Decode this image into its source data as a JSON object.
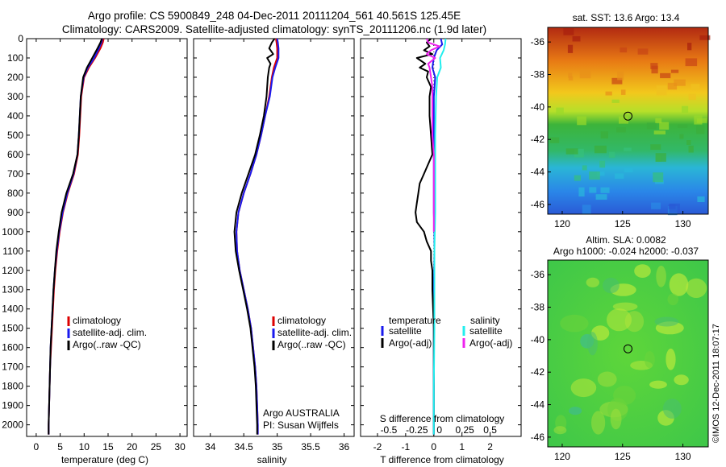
{
  "titles": {
    "line1": "Argo profile: CS 5900849_248 04-Dec-2011 20111204_561 40.561S 125.45E",
    "line2": "Climatology: CARS2009. Satellite-adjusted climatology: synTS_20111206.nc (1.9d later)"
  },
  "colors": {
    "red": "#dd0000",
    "blue": "#1a1aee",
    "black": "#000000",
    "cyan": "#22eeee",
    "magenta": "#ee22ee"
  },
  "chart_data": [
    {
      "id": "temperature",
      "type": "line",
      "xlabel": "temperature (deg C)",
      "ylabel": "",
      "xlim": [
        -2,
        31.5
      ],
      "ylim": [
        2060,
        0
      ],
      "xticks": [
        "0",
        "5",
        "10",
        "15",
        "20",
        "25",
        "30"
      ],
      "xtick_values": [
        0,
        5,
        10,
        15,
        20,
        25,
        30
      ],
      "yticks": [
        "0",
        "100",
        "200",
        "300",
        "400",
        "500",
        "600",
        "700",
        "800",
        "900",
        "1000",
        "1100",
        "1200",
        "1300",
        "1400",
        "1500",
        "1600",
        "1700",
        "1800",
        "1900",
        "2000"
      ],
      "ytick_values": [
        0,
        100,
        200,
        300,
        400,
        500,
        600,
        700,
        800,
        900,
        1000,
        1100,
        1200,
        1300,
        1400,
        1500,
        1600,
        1700,
        1800,
        1900,
        2000
      ],
      "legend": [
        "climatology",
        "satellite-adj. clim.",
        "Argo(..raw -QC)"
      ],
      "legend_colors": [
        "#dd0000",
        "#1a1aee",
        "#000000"
      ],
      "series": [
        {
          "name": "climatology",
          "color": "#dd0000",
          "depth": [
            0,
            20,
            50,
            100,
            150,
            200,
            300,
            400,
            500,
            600,
            700,
            800,
            900,
            1000,
            1100,
            1200,
            1300,
            1400,
            1500,
            1600,
            1700,
            1800,
            1900,
            2000,
            2050
          ],
          "values": [
            14.1,
            13.9,
            13.4,
            12.3,
            11.0,
            10.0,
            9.4,
            9.2,
            9.0,
            8.7,
            7.9,
            6.6,
            5.6,
            4.9,
            4.4,
            4.0,
            3.7,
            3.5,
            3.3,
            3.1,
            2.9,
            2.8,
            2.7,
            2.6,
            2.6
          ]
        },
        {
          "name": "satellite-adj. clim.",
          "color": "#1a1aee",
          "depth": [
            0,
            20,
            50,
            100,
            150,
            200,
            300,
            400,
            500,
            600,
            700,
            800,
            900,
            1000,
            1100,
            1200,
            1300,
            1400,
            1500,
            1600,
            1700,
            1800,
            1900,
            2000,
            2050
          ],
          "values": [
            13.8,
            13.6,
            13.1,
            12.1,
            10.8,
            9.9,
            9.3,
            9.1,
            8.9,
            8.6,
            7.8,
            6.5,
            5.5,
            4.8,
            4.3,
            3.9,
            3.6,
            3.4,
            3.2,
            3.0,
            2.9,
            2.8,
            2.7,
            2.6,
            2.6
          ]
        },
        {
          "name": "Argo(..raw -QC)",
          "color": "#000000",
          "depth": [
            0,
            20,
            50,
            100,
            150,
            200,
            300,
            400,
            500,
            600,
            700,
            800,
            900,
            1000,
            1100,
            1200,
            1300,
            1400,
            1500,
            1600,
            1700,
            1800,
            1900,
            2000,
            2050
          ],
          "values": [
            13.7,
            13.4,
            12.8,
            11.7,
            10.6,
            9.8,
            9.3,
            9.1,
            8.9,
            8.6,
            7.7,
            6.3,
            5.3,
            4.7,
            4.2,
            3.9,
            3.6,
            3.4,
            3.2,
            3.0,
            2.9,
            2.8,
            2.7,
            2.6,
            2.6
          ]
        }
      ]
    },
    {
      "id": "salinity",
      "type": "line",
      "xlabel": "salinity",
      "xlim": [
        33.75,
        36.15
      ],
      "ylim": [
        2060,
        0
      ],
      "xticks": [
        "34",
        "34.5",
        "35",
        "35.5",
        "36"
      ],
      "xtick_values": [
        34,
        34.5,
        35,
        35.5,
        36
      ],
      "legend": [
        "climatology",
        "satellite-adj. clim.",
        "Argo(..raw -QC)"
      ],
      "legend_colors": [
        "#dd0000",
        "#1a1aee",
        "#000000"
      ],
      "annotation": [
        "Argo AUSTRALIA",
        "PI: Susan Wijffels"
      ],
      "series": [
        {
          "name": "climatology",
          "color": "#dd0000",
          "depth": [
            0,
            20,
            50,
            100,
            150,
            200,
            300,
            400,
            500,
            600,
            700,
            800,
            900,
            1000,
            1100,
            1200,
            1300,
            1400,
            1500,
            1600,
            1700,
            1800,
            1900,
            2000,
            2050
          ],
          "values": [
            34.98,
            34.99,
            35.0,
            35.0,
            34.95,
            34.92,
            34.88,
            34.82,
            34.76,
            34.69,
            34.6,
            34.5,
            34.42,
            34.39,
            34.4,
            34.44,
            34.5,
            34.56,
            34.61,
            34.64,
            34.67,
            34.69,
            34.7,
            34.71,
            34.71
          ]
        },
        {
          "name": "satellite-adj. clim.",
          "color": "#1a1aee",
          "depth": [
            0,
            20,
            50,
            100,
            150,
            200,
            300,
            400,
            500,
            600,
            700,
            800,
            900,
            1000,
            1100,
            1200,
            1300,
            1400,
            1500,
            1600,
            1700,
            1800,
            1900,
            2000,
            2050
          ],
          "values": [
            35.0,
            35.01,
            35.02,
            35.02,
            34.97,
            34.93,
            34.89,
            34.82,
            34.76,
            34.69,
            34.6,
            34.5,
            34.42,
            34.39,
            34.4,
            34.44,
            34.5,
            34.56,
            34.61,
            34.64,
            34.67,
            34.69,
            34.7,
            34.71,
            34.71
          ]
        },
        {
          "name": "Argo(..raw -QC)",
          "color": "#000000",
          "depth": [
            0,
            20,
            50,
            80,
            100,
            130,
            150,
            200,
            300,
            400,
            500,
            600,
            700,
            800,
            900,
            1000,
            1100,
            1200,
            1300,
            1400,
            1500,
            1600,
            1700,
            1800,
            1900,
            2000,
            2050
          ],
          "values": [
            34.96,
            34.92,
            34.88,
            34.94,
            34.85,
            34.9,
            34.88,
            34.86,
            34.84,
            34.8,
            34.74,
            34.67,
            34.57,
            34.47,
            34.39,
            34.36,
            34.38,
            34.43,
            34.49,
            34.55,
            34.6,
            34.63,
            34.66,
            34.68,
            34.69,
            34.7,
            34.7
          ]
        }
      ]
    },
    {
      "id": "difference",
      "type": "line",
      "xlabel": "T difference from climatology",
      "xlabel_top": "S difference from climatology",
      "xlim": [
        -2.6,
        3.1
      ],
      "ylim": [
        2060,
        0
      ],
      "xticks": [
        "-2",
        "-1",
        "0",
        "1",
        "2"
      ],
      "xtick_values": [
        -2,
        -1,
        0,
        1,
        2
      ],
      "sticks": [
        "-0.5",
        "-0.25",
        "0",
        "0.25",
        "0.5"
      ],
      "stick_positions_T": [
        -1.6,
        -0.6,
        0.2,
        1.1,
        2.0
      ],
      "legend_groups": [
        "temperature",
        "salinity"
      ],
      "legend_temp": [
        "satellite",
        "Argo(-adj)"
      ],
      "legend_sal": [
        "satellite",
        "Argo(-adj)"
      ],
      "legend_colors": [
        "#1a1aee",
        "#000000",
        "#22eeee",
        "#ee22ee"
      ],
      "series": [
        {
          "name": "T satellite",
          "color": "#1a1aee",
          "depth": [
            0,
            30,
            60,
            100,
            150,
            200,
            300,
            500,
            700,
            900,
            1000,
            1100,
            1300,
            1500,
            2000,
            2050
          ],
          "values": [
            0.25,
            0.3,
            0.1,
            0.0,
            -0.05,
            0.05,
            0.0,
            0.0,
            0.0,
            0.0,
            0.02,
            0.02,
            0.0,
            0.0,
            0.0,
            0.0
          ]
        },
        {
          "name": "T Argo(-adj)",
          "color": "#000000",
          "depth": [
            0,
            20,
            40,
            60,
            80,
            100,
            130,
            150,
            170,
            200,
            250,
            300,
            400,
            500,
            600,
            650,
            700,
            750,
            800,
            850,
            900,
            950,
            1000,
            1050,
            1100,
            1150,
            1200,
            1300,
            1500,
            2000,
            2050
          ],
          "values": [
            -0.1,
            -0.25,
            -0.15,
            -0.35,
            -0.05,
            -0.6,
            -0.3,
            -0.5,
            -0.2,
            -0.25,
            -0.1,
            -0.15,
            -0.15,
            -0.1,
            -0.05,
            -0.2,
            -0.35,
            -0.5,
            -0.55,
            -0.6,
            -0.65,
            -0.6,
            -0.35,
            -0.25,
            -0.1,
            -0.1,
            -0.05,
            -0.05,
            0.0,
            0.0,
            0.0
          ]
        },
        {
          "name": "S satellite",
          "color": "#22eeee",
          "depth": [
            0,
            30,
            60,
            100,
            150,
            200,
            300,
            500,
            700,
            900,
            1100,
            1300,
            1500,
            1800,
            2000,
            2050
          ],
          "values": [
            0.42,
            0.4,
            0.35,
            0.22,
            0.25,
            0.12,
            0.08,
            0.05,
            0.05,
            0.05,
            0.02,
            0.02,
            0.02,
            0.0,
            0.0,
            0.0
          ]
        },
        {
          "name": "S Argo(-adj)",
          "color": "#ee22ee",
          "depth": [
            0,
            20,
            40,
            60,
            80,
            100,
            130,
            150,
            200,
            250,
            300,
            400,
            500,
            600,
            700,
            800,
            900,
            1000
          ],
          "values": [
            -0.25,
            -0.2,
            0.2,
            -0.1,
            -0.25,
            0.05,
            -0.2,
            -0.15,
            -0.1,
            -0.05,
            -0.05,
            -0.05,
            -0.05,
            0.0,
            0.0,
            0.0,
            0.0,
            0.0
          ]
        }
      ]
    },
    {
      "id": "sst_map",
      "type": "heatmap",
      "title": "sat. SST: 13.6 Argo: 13.4",
      "xlim": [
        118.8,
        132.1
      ],
      "ylim": [
        -46.6,
        -35.1
      ],
      "xticks": [
        "120",
        "125",
        "130"
      ],
      "xtick_values": [
        120,
        125,
        130
      ],
      "yticks": [
        "-36",
        "-38",
        "-40",
        "-42",
        "-44",
        "-46"
      ],
      "ytick_values": [
        -36,
        -38,
        -40,
        -42,
        -44,
        -46
      ],
      "marker": [
        125.45,
        -40.561
      ]
    },
    {
      "id": "sla_map",
      "type": "heatmap",
      "title_line1": "Altim. SLA: 0.0082",
      "title_line2": "Argo h1000: -0.024 h2000: -0.037",
      "xlim": [
        118.8,
        132.1
      ],
      "ylim": [
        -46.6,
        -35.1
      ],
      "xticks": [
        "120",
        "125",
        "130"
      ],
      "xtick_values": [
        120,
        125,
        130
      ],
      "yticks": [
        "-36",
        "-38",
        "-40",
        "-42",
        "-44",
        "-46"
      ],
      "ytick_values": [
        -36,
        -38,
        -40,
        -42,
        -44,
        -46
      ],
      "marker": [
        125.45,
        -40.561
      ]
    }
  ],
  "credit": "©IMOS 12-Dec-2011 18:07:17"
}
